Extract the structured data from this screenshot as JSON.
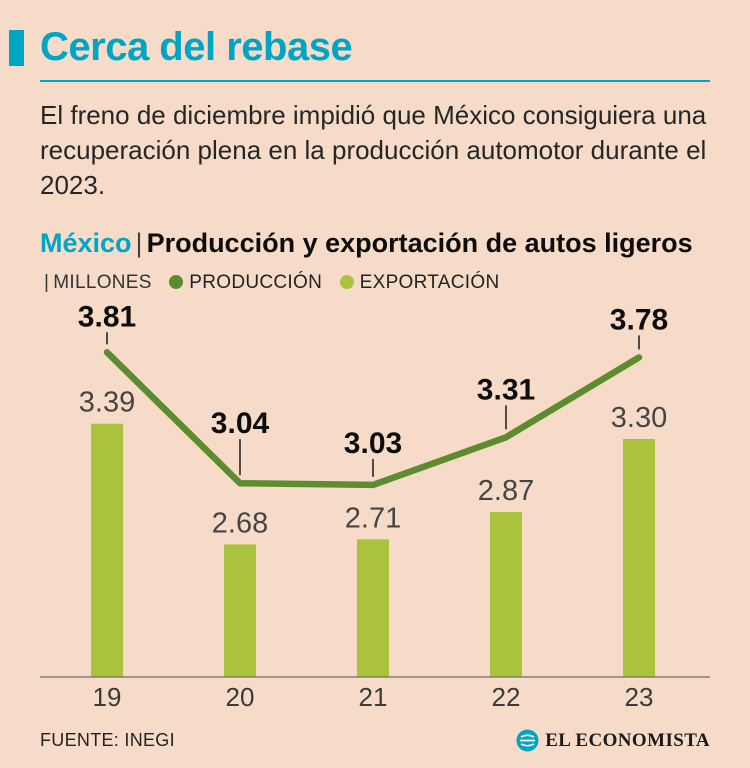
{
  "colors": {
    "background": "#f6dcc8",
    "accent_teal": "#00a4c4",
    "production_green": "#5d8b2f",
    "export_green": "#abc23d",
    "text": "#141414"
  },
  "header": {
    "title": "Cerca del rebase",
    "description": "El freno de diciembre impidió que México consiguiera una recuperación plena en la producción automotor durante el 2023."
  },
  "chart_header": {
    "region": "México",
    "separator": "|",
    "title": "Producción y exportación de autos ligeros",
    "separator2": "|",
    "units": "MILLONES",
    "legend": [
      {
        "label": "PRODUCCIÓN",
        "color": "#5d8b2f"
      },
      {
        "label": "EXPORTACIÓN",
        "color": "#abc23d"
      }
    ]
  },
  "chart_data": {
    "type": "bar+line",
    "title": "México | Producción y exportación de autos ligeros",
    "units": "MILLONES",
    "categories": [
      "19",
      "20",
      "21",
      "22",
      "23"
    ],
    "series": [
      {
        "name": "PRODUCCIÓN",
        "type": "line",
        "color": "#5d8b2f",
        "values": [
          3.81,
          3.04,
          3.03,
          3.31,
          3.78
        ]
      },
      {
        "name": "EXPORTACIÓN",
        "type": "bar",
        "color": "#abc23d",
        "values": [
          3.39,
          2.68,
          2.71,
          2.87,
          3.3
        ]
      }
    ],
    "value_axis": {
      "min": 1.9,
      "gridlines": false,
      "truncated": true
    },
    "legend_position": "top",
    "value_labels": "all"
  },
  "footer": {
    "source": "FUENTE: INEGI",
    "brand": "EL ECONOMISTA"
  }
}
